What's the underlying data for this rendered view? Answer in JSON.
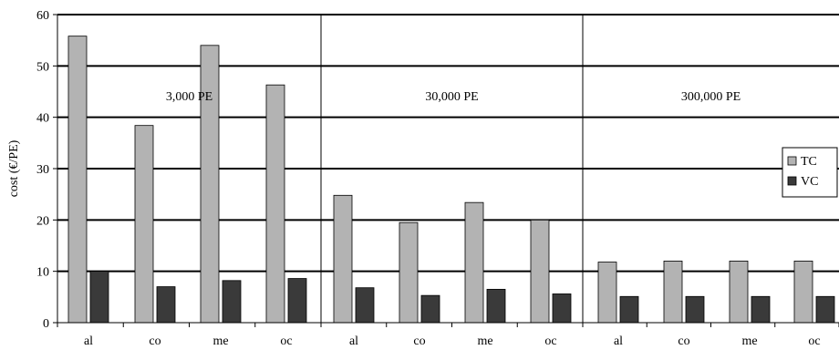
{
  "chart_data": {
    "type": "bar",
    "ylabel": "cost (€/PE)",
    "ylim": [
      0,
      60
    ],
    "yticks": [
      0,
      10,
      20,
      30,
      40,
      50,
      60
    ],
    "grid": true,
    "legend": {
      "placement": "right",
      "entries": [
        "TC",
        "VC"
      ]
    },
    "series_colors": {
      "TC": "#b3b3b3",
      "VC": "#3a3a3a"
    },
    "groups": [
      {
        "label": "3,000 PE",
        "categories": [
          "al",
          "co",
          "me",
          "oc"
        ],
        "series": [
          {
            "name": "TC",
            "values": [
              55.8,
              38.4,
              54.0,
              46.3
            ]
          },
          {
            "name": "VC",
            "values": [
              10.0,
              7.0,
              8.2,
              8.6
            ]
          }
        ]
      },
      {
        "label": "30,000 PE",
        "categories": [
          "al",
          "co",
          "me",
          "oc"
        ],
        "series": [
          {
            "name": "TC",
            "values": [
              24.8,
              19.5,
              23.4,
              20.0
            ]
          },
          {
            "name": "VC",
            "values": [
              6.8,
              5.3,
              6.5,
              5.6
            ]
          }
        ]
      },
      {
        "label": "300,000 PE",
        "categories": [
          "al",
          "co",
          "me",
          "oc"
        ],
        "series": [
          {
            "name": "TC",
            "values": [
              11.8,
              12.0,
              12.0,
              12.0
            ]
          },
          {
            "name": "VC",
            "values": [
              5.1,
              5.1,
              5.1,
              5.1
            ]
          }
        ]
      }
    ]
  }
}
